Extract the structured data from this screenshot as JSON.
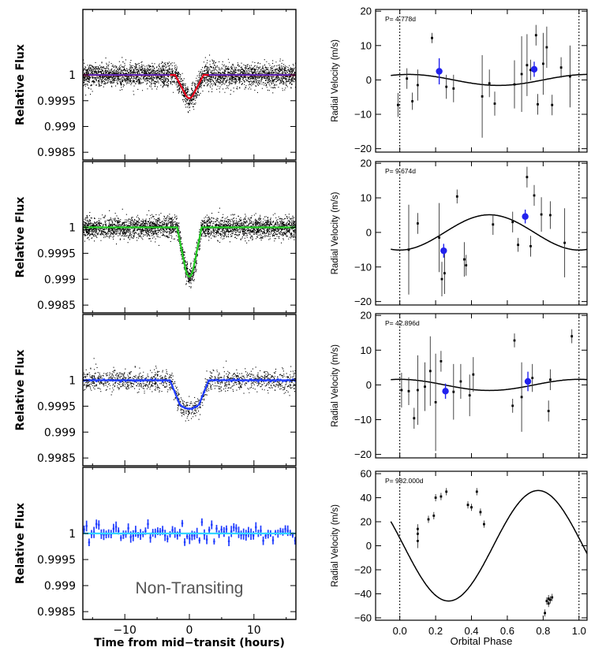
{
  "chart_data": {
    "left_panels": [
      {
        "type": "scatter",
        "title": "",
        "ylabel": "Relative Flux",
        "xlim": [
          -16.5,
          16.5
        ],
        "ylim": [
          0.99835,
          1.00127
        ],
        "yticks": [
          1,
          0.9995,
          0.999,
          0.9985
        ],
        "ytick_labels": [
          "1",
          "0.9995",
          "0.999",
          "0.9985"
        ],
        "model": {
          "color": "#e8001c",
          "baseline": 1.0,
          "depth_value": 0.99955,
          "ingress_start": -2.2,
          "ingress_end": -0.6,
          "egress_start": 0.6,
          "egress_end": 2.2
        },
        "baseline_color": "#1f3cff",
        "binned": false,
        "raw_scatter_sigma": 0.00011,
        "raw_scatter_count": 3400
      },
      {
        "type": "scatter",
        "title": "",
        "ylabel": "Relative Flux",
        "xlim": [
          -16.5,
          16.5
        ],
        "ylim": [
          0.99835,
          1.00127
        ],
        "yticks": [
          1,
          0.9995,
          0.999,
          0.9985
        ],
        "ytick_labels": [
          "1",
          "0.9995",
          "0.999",
          "0.9985"
        ],
        "model": {
          "color": "#22cc22",
          "baseline": 1.0,
          "depth_value": 0.99905,
          "ingress_start": -1.9,
          "ingress_end": -0.6,
          "egress_start": 0.6,
          "egress_end": 1.9
        },
        "binned": false,
        "raw_scatter_sigma": 0.0001,
        "raw_scatter_count": 3400
      },
      {
        "type": "scatter",
        "title": "",
        "ylabel": "Relative Flux",
        "xlim": [
          -16.5,
          16.5
        ],
        "ylim": [
          0.99835,
          1.00127
        ],
        "yticks": [
          1,
          0.9995,
          0.999,
          0.9985
        ],
        "ytick_labels": [
          "1",
          "0.9995",
          "0.999",
          "0.9985"
        ],
        "model": {
          "color": "#1f3cff",
          "baseline": 1.0,
          "depth_value": 0.99945,
          "ingress_start": -3.0,
          "ingress_end": -1.5,
          "egress_start": 1.5,
          "egress_end": 3.0
        },
        "binned": true,
        "raw_scatter_sigma": 0.0001,
        "raw_scatter_count": 1400
      },
      {
        "type": "scatter",
        "title": "",
        "ylabel": "Relative Flux",
        "xlim": [
          -16.5,
          16.5
        ],
        "ylim": [
          0.99835,
          1.00127
        ],
        "yticks": [
          1,
          0.9995,
          0.999,
          0.9985
        ],
        "ytick_labels": [
          "1",
          "0.9995",
          "0.999",
          "0.9985"
        ],
        "model": {
          "color": "#33d6ff",
          "baseline": 1.0,
          "depth_value": 1.0,
          "ingress_start": 0,
          "ingress_end": 0,
          "egress_start": 0,
          "egress_end": 0
        },
        "binned": true,
        "binned_only": true,
        "annotation": "Non-Transiting",
        "xlabel": "Time from mid−transit (hours)",
        "xticks": [
          -10,
          0,
          10
        ],
        "xtick_labels": [
          "−10",
          "0",
          "10"
        ]
      }
    ],
    "right_panels": [
      {
        "type": "scatter",
        "period_label": "P= 4.778d",
        "ylabel": "Radial Velocity (m/s)",
        "xlim": [
          -0.135,
          1.045
        ],
        "ylim": [
          -21,
          20.5
        ],
        "yticks": [
          20,
          10,
          0,
          -10,
          -20
        ],
        "ytick_labels": [
          "20",
          "10",
          "0",
          "−10",
          "−20"
        ],
        "amplitude": 1.6,
        "phase_shift": 0.55,
        "offset": 0.0,
        "points": [
          {
            "x": -0.01,
            "y": -7.3,
            "e": 3.5
          },
          {
            "x": 0.04,
            "y": 0.4,
            "e": 3
          },
          {
            "x": 0.07,
            "y": -6.2,
            "e": 2.5
          },
          {
            "x": 0.1,
            "y": -1.5,
            "e": 4.5
          },
          {
            "x": 0.18,
            "y": 12.2,
            "e": 1.5
          },
          {
            "x": 0.26,
            "y": -2.0,
            "e": 3.5
          },
          {
            "x": 0.3,
            "y": -2.5,
            "e": 4
          },
          {
            "x": 0.46,
            "y": -4.8,
            "e": 12
          },
          {
            "x": 0.5,
            "y": -1.0,
            "e": 4
          },
          {
            "x": 0.53,
            "y": -6.9,
            "e": 3.5
          },
          {
            "x": 0.64,
            "y": -1.3,
            "e": 7
          },
          {
            "x": 0.68,
            "y": 1.7,
            "e": 11
          },
          {
            "x": 0.71,
            "y": 4.3,
            "e": 9
          },
          {
            "x": 0.73,
            "y": 2.9,
            "e": 3
          },
          {
            "x": 0.76,
            "y": 13.0,
            "e": 3
          },
          {
            "x": 0.77,
            "y": -7.1,
            "e": 3
          },
          {
            "x": 0.8,
            "y": 4.7,
            "e": 9
          },
          {
            "x": 0.82,
            "y": 9.5,
            "e": 6
          },
          {
            "x": 0.85,
            "y": -7.3,
            "e": 3
          },
          {
            "x": 0.9,
            "y": 3.6,
            "e": 3
          },
          {
            "x": 0.95,
            "y": 1.0,
            "e": 9
          }
        ],
        "binned_points": [
          {
            "x": 0.22,
            "y": 2.5,
            "e": 3.8
          },
          {
            "x": 0.75,
            "y": 3.1,
            "e": 2.2
          }
        ]
      },
      {
        "type": "scatter",
        "period_label": "P= 9.674d",
        "ylabel": "Radial Velocity (m/s)",
        "xlim": [
          -0.135,
          1.045
        ],
        "ylim": [
          -21,
          20.5
        ],
        "yticks": [
          20,
          10,
          0,
          -10,
          -20
        ],
        "ytick_labels": [
          "20",
          "10",
          "0",
          "−10",
          "−20"
        ],
        "amplitude": 5.1,
        "phase_shift": 0.0,
        "offset": 0.0,
        "points": [
          {
            "x": 0.05,
            "y": -5.0,
            "e": 13
          },
          {
            "x": 0.1,
            "y": 2.6,
            "e": 3
          },
          {
            "x": 0.22,
            "y": -1.5,
            "e": 10
          },
          {
            "x": 0.235,
            "y": -13.5,
            "e": 5
          },
          {
            "x": 0.25,
            "y": -11.8,
            "e": 6
          },
          {
            "x": 0.32,
            "y": 10.4,
            "e": 2
          },
          {
            "x": 0.36,
            "y": -7.8,
            "e": 5
          },
          {
            "x": 0.37,
            "y": -9.5,
            "e": 3
          },
          {
            "x": 0.52,
            "y": 2.3,
            "e": 3
          },
          {
            "x": 0.63,
            "y": 3.0,
            "e": 3
          },
          {
            "x": 0.66,
            "y": -3.6,
            "e": 2
          },
          {
            "x": 0.71,
            "y": 16.0,
            "e": 3
          },
          {
            "x": 0.73,
            "y": -4.0,
            "e": 3
          },
          {
            "x": 0.75,
            "y": 10.7,
            "e": 3
          },
          {
            "x": 0.79,
            "y": 5.2,
            "e": 5
          },
          {
            "x": 0.84,
            "y": 5.0,
            "e": 4
          },
          {
            "x": 0.92,
            "y": -3.0,
            "e": 10
          }
        ],
        "binned_points": [
          {
            "x": 0.245,
            "y": -5.3,
            "e": 2
          },
          {
            "x": 0.7,
            "y": 4.6,
            "e": 2
          }
        ]
      },
      {
        "type": "scatter",
        "period_label": "P= 42.896d",
        "ylabel": "Radial Velocity (m/s)",
        "xlim": [
          -0.135,
          1.045
        ],
        "ylim": [
          -21,
          20.5
        ],
        "yticks": [
          20,
          10,
          0,
          -10,
          -20
        ],
        "ytick_labels": [
          "20",
          "10",
          "0",
          "−10",
          "−20"
        ],
        "amplitude": 1.6,
        "phase_shift": 0.5,
        "offset": 0.0,
        "points": [
          {
            "x": 0.01,
            "y": -1.5,
            "e": 5
          },
          {
            "x": 0.05,
            "y": -1.8,
            "e": 4
          },
          {
            "x": 0.08,
            "y": -9.6,
            "e": 3
          },
          {
            "x": 0.1,
            "y": -1.5,
            "e": 10
          },
          {
            "x": 0.14,
            "y": -0.5,
            "e": 7
          },
          {
            "x": 0.17,
            "y": 4.0,
            "e": 10
          },
          {
            "x": 0.2,
            "y": -5.0,
            "e": 14
          },
          {
            "x": 0.23,
            "y": 6.8,
            "e": 3
          },
          {
            "x": 0.3,
            "y": -2.0,
            "e": 8
          },
          {
            "x": 0.34,
            "y": 1.0,
            "e": 5
          },
          {
            "x": 0.39,
            "y": -3.0,
            "e": 6
          },
          {
            "x": 0.41,
            "y": 3.0,
            "e": 5
          },
          {
            "x": 0.63,
            "y": -6.0,
            "e": 2
          },
          {
            "x": 0.64,
            "y": 12.8,
            "e": 2
          },
          {
            "x": 0.68,
            "y": -3.5,
            "e": 10
          },
          {
            "x": 0.74,
            "y": 2.0,
            "e": 4
          },
          {
            "x": 0.83,
            "y": -7.5,
            "e": 3
          },
          {
            "x": 0.84,
            "y": 1.5,
            "e": 3
          },
          {
            "x": 0.96,
            "y": 14.0,
            "e": 2
          }
        ],
        "binned_points": [
          {
            "x": 0.255,
            "y": -1.8,
            "e": 2.2
          },
          {
            "x": 0.715,
            "y": 1.0,
            "e": 2.8
          }
        ]
      },
      {
        "type": "line",
        "period_label": "P= 982.000d",
        "ylabel": "Radial Velocity (m/s)",
        "xlabel": "Orbital Phase",
        "xlim": [
          -0.135,
          1.045
        ],
        "ylim": [
          -62,
          62
        ],
        "yticks": [
          60,
          40,
          20,
          0,
          -20,
          -40,
          -60
        ],
        "ytick_labels": [
          "60",
          "40",
          "20",
          "0",
          "−20",
          "−40",
          "−60"
        ],
        "xticks": [
          0.0,
          0.2,
          0.4,
          0.6,
          0.8,
          1.0
        ],
        "xtick_labels": [
          "0.0",
          "0.2",
          "0.4",
          "0.6",
          "0.8",
          "1.0"
        ],
        "amplitude": 46,
        "phase_shift": 0.07,
        "offset": 0.0,
        "points": [
          {
            "x": 0.1,
            "y": 10,
            "e": 8
          },
          {
            "x": 0.1,
            "y": 4,
            "e": 6
          },
          {
            "x": 0.1,
            "y": 14,
            "e": 4
          },
          {
            "x": 0.16,
            "y": 22,
            "e": 3
          },
          {
            "x": 0.19,
            "y": 25,
            "e": 3
          },
          {
            "x": 0.2,
            "y": 40,
            "e": 3
          },
          {
            "x": 0.23,
            "y": 41,
            "e": 3
          },
          {
            "x": 0.26,
            "y": 45,
            "e": 3
          },
          {
            "x": 0.38,
            "y": 34,
            "e": 3
          },
          {
            "x": 0.4,
            "y": 32,
            "e": 3
          },
          {
            "x": 0.43,
            "y": 45,
            "e": 3
          },
          {
            "x": 0.45,
            "y": 28,
            "e": 3
          },
          {
            "x": 0.47,
            "y": 18,
            "e": 3
          },
          {
            "x": 0.81,
            "y": -56,
            "e": 3
          },
          {
            "x": 0.82,
            "y": -46,
            "e": 3
          },
          {
            "x": 0.83,
            "y": -44,
            "e": 3
          },
          {
            "x": 0.84,
            "y": -45,
            "e": 3
          },
          {
            "x": 0.85,
            "y": -43,
            "e": 3
          },
          {
            "x": 0.83,
            "y": -48,
            "e": 3
          }
        ],
        "binned_points": []
      }
    ]
  }
}
